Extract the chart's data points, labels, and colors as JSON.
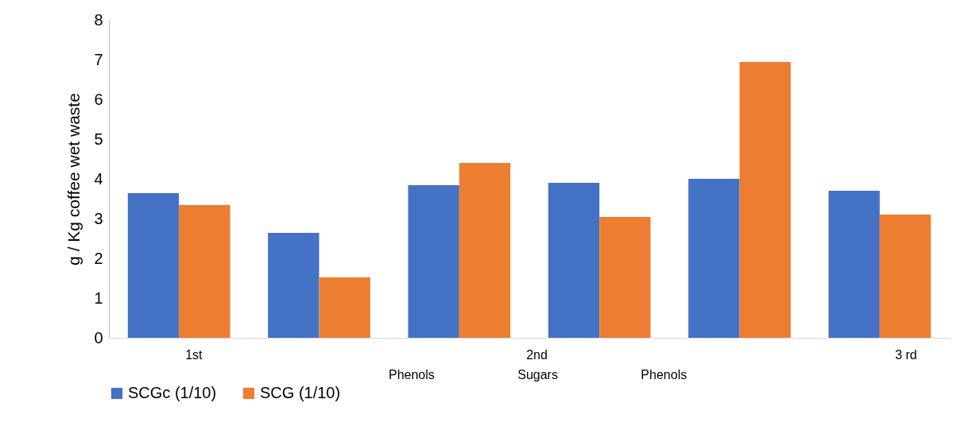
{
  "chart_data": {
    "type": "bar",
    "ylabel": "g / Kg coffee wet waste",
    "categories": [
      null,
      null,
      null,
      null,
      null,
      null
    ],
    "series": [
      {
        "name": "SCGc (1/10)",
        "color": "#4472c4",
        "values": [
          3.64,
          2.64,
          3.84,
          3.9,
          4.0,
          3.7
        ]
      },
      {
        "name": "SCG (1/10)",
        "color": "#ed7d31",
        "values": [
          3.34,
          1.52,
          4.4,
          3.04,
          6.94,
          3.1
        ]
      }
    ],
    "ylim": [
      0,
      8
    ],
    "yticks": [
      0,
      1,
      2,
      3,
      4,
      5,
      6,
      7,
      8
    ],
    "grid": false,
    "legend": "bottom",
    "annotations": [
      "1st",
      "2nd",
      "3 rd",
      "Phenols",
      "Sugars",
      "Phenols"
    ]
  }
}
